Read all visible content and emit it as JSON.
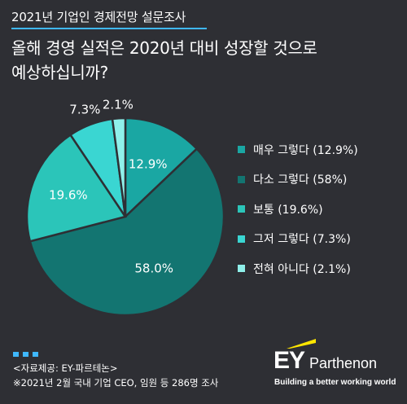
{
  "header": {
    "title": "2021년 기업인 경제전망 설문조사",
    "question_line1": "올해 경영 실적은 2020년 대비 성장할 것으로",
    "question_line2": "예상하십니까?"
  },
  "chart_data": {
    "type": "pie",
    "title": "올해 경영 실적은 2020년 대비 성장할 것으로 예상하십니까?",
    "slices": [
      {
        "label": "매우 그렇다",
        "value": 12.9,
        "value_label": "12.9%",
        "legend": "매우 그렇다 (12.9%)",
        "color": "#1aa7a3"
      },
      {
        "label": "다소 그렇다",
        "value": 58.0,
        "value_label": "58.0%",
        "legend": "다소 그렇다 (58%)",
        "color": "#137571"
      },
      {
        "label": "보통",
        "value": 19.6,
        "value_label": "19.6%",
        "legend": "보통 (19.6%)",
        "color": "#2bc5b9"
      },
      {
        "label": "그저 그렇다",
        "value": 7.3,
        "value_label": "7.3%",
        "legend": "그저 그렇다 (7.3%)",
        "color": "#3ad6d2"
      },
      {
        "label": "전혀 아니다",
        "value": 2.1,
        "value_label": "2.1%",
        "legend": "전혀 아니다 (2.1%)",
        "color": "#8ff0ea"
      }
    ],
    "start_angle_deg": 0,
    "direction": "clockwise",
    "legend_position": "right"
  },
  "footer": {
    "source": "<자료제공: EY-파르테논>",
    "note": "※2021년 2월 국내 기업 CEO, 임원 등 286명 조사"
  },
  "logo": {
    "mark": "EY",
    "name": "Parthenon",
    "tagline": "Building a better working world",
    "accent_color": "#ffe600"
  },
  "colors": {
    "background": "#2e2f34",
    "rule": "#3fb8ff"
  }
}
